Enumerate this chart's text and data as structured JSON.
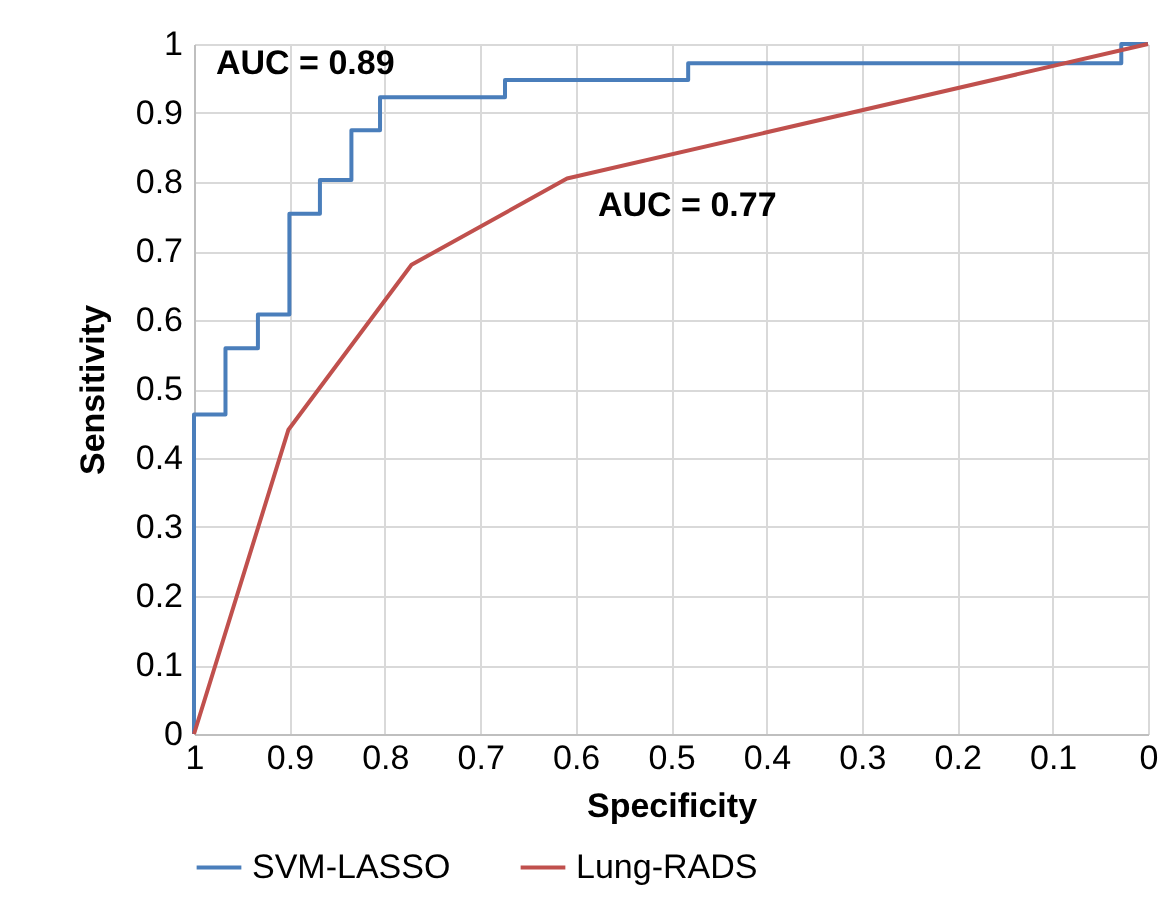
{
  "chart_data": {
    "type": "line",
    "xlabel": "Specificity",
    "ylabel": "Sensitivity",
    "xlim": [
      1,
      0
    ],
    "xticks": [
      1,
      0.9,
      0.8,
      0.7,
      0.6,
      0.5,
      0.4,
      0.3,
      0.2,
      0.1,
      0
    ],
    "ylim": [
      0,
      1
    ],
    "yticks": [
      0,
      0.1,
      0.2,
      0.3,
      0.4,
      0.5,
      0.6,
      0.7,
      0.8,
      0.9,
      1
    ],
    "grid": true,
    "legend": "bottom",
    "marker": "none",
    "line_style": "solid",
    "annotations": [
      "AUC = 0.89",
      "AUC = 0.77"
    ],
    "series": [
      {
        "name": "SVM-LASSO",
        "type": "step",
        "color": "#4a7ebb",
        "x": [
          1,
          0.967,
          0.933,
          0.9,
          0.868,
          0.835,
          0.805,
          0.674,
          0.482,
          0.028,
          0
        ],
        "values": [
          0,
          0.463,
          0.559,
          0.608,
          0.754,
          0.803,
          0.875,
          0.923,
          0.948,
          0.972,
          1
        ]
      },
      {
        "name": "Lung-RADS",
        "type": "line",
        "color": "#c0504d",
        "x": [
          1,
          0.901,
          0.772,
          0.609,
          0
        ],
        "values": [
          0,
          0.441,
          0.68,
          0.805,
          1
        ]
      }
    ]
  }
}
